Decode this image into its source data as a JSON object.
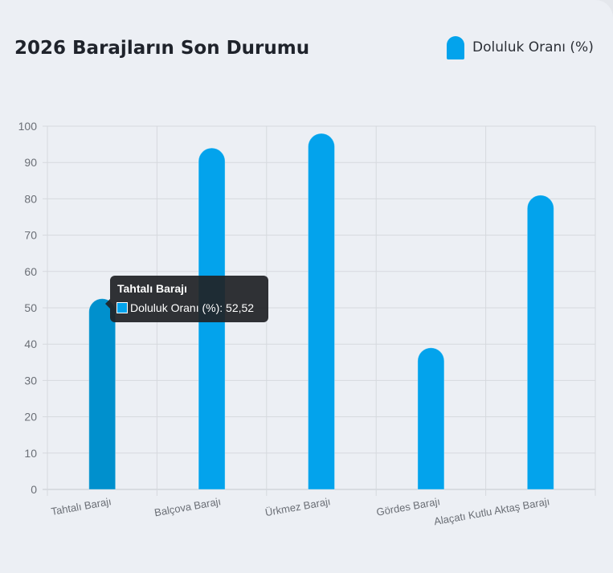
{
  "chart_data": {
    "type": "bar",
    "title": "2026 Barajların Son Durumu",
    "categories": [
      "Tahtalı Barajı",
      "Balçova Barajı",
      "Ürkmez Barajı",
      "Gördes Barajı",
      "Alaçatı Kutlu Aktaş Barajı"
    ],
    "series": [
      {
        "name": "Doluluk Oranı (%)",
        "values": [
          52.52,
          94,
          98,
          39,
          81
        ]
      }
    ],
    "ylim": [
      0,
      100
    ],
    "yticks": [
      0,
      10,
      20,
      30,
      40,
      50,
      60,
      70,
      80,
      90,
      100
    ],
    "grid": true,
    "legend_position": "top-right",
    "bar_color": "#03a3ec",
    "hover_bar_color": "#0090cd",
    "highlighted_index": 0
  },
  "tooltip": {
    "title": "Tahtalı Barajı",
    "series_label": "Doluluk Oranı (%)",
    "value_text": "52,52"
  }
}
